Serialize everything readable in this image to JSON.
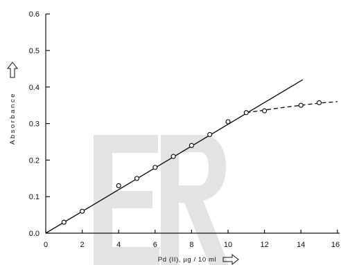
{
  "watermark": "ER",
  "colors": {
    "ink": "#111111",
    "watermark": "#e3e3e3",
    "marker_fill": "#ffffff"
  },
  "icons": {
    "ylabel_arrow": "up-arrow-icon",
    "xlabel_arrow": "right-arrow-icon"
  },
  "chart_data": {
    "type": "scatter",
    "xlabel": "Pd (II), µg / 10 ml",
    "ylabel": "Absorbance",
    "xlim": [
      0,
      16
    ],
    "ylim": [
      0,
      0.6
    ],
    "xticks": [
      0,
      2,
      4,
      6,
      8,
      10,
      12,
      14,
      16
    ],
    "yticks": [
      "0.0",
      "0.1",
      "0.2",
      "0.3",
      "0.4",
      "0.5",
      "0.6"
    ],
    "grid": false,
    "legend": "none",
    "series": [
      {
        "line": "solid",
        "x": [
          0,
          14.1
        ],
        "y": [
          0,
          0.42
        ]
      },
      {
        "line": "dashed",
        "x": [
          11,
          12,
          13,
          14,
          15,
          16
        ],
        "y": [
          0.33,
          0.337,
          0.344,
          0.35,
          0.356,
          0.36
        ]
      },
      {
        "marker": "open-circle",
        "x": [
          1,
          2,
          4,
          5,
          6,
          7,
          8,
          9,
          10,
          11,
          12,
          14,
          15
        ],
        "y": [
          0.03,
          0.06,
          0.13,
          0.15,
          0.18,
          0.21,
          0.24,
          0.27,
          0.305,
          0.33,
          0.335,
          0.35,
          0.357
        ]
      }
    ]
  }
}
